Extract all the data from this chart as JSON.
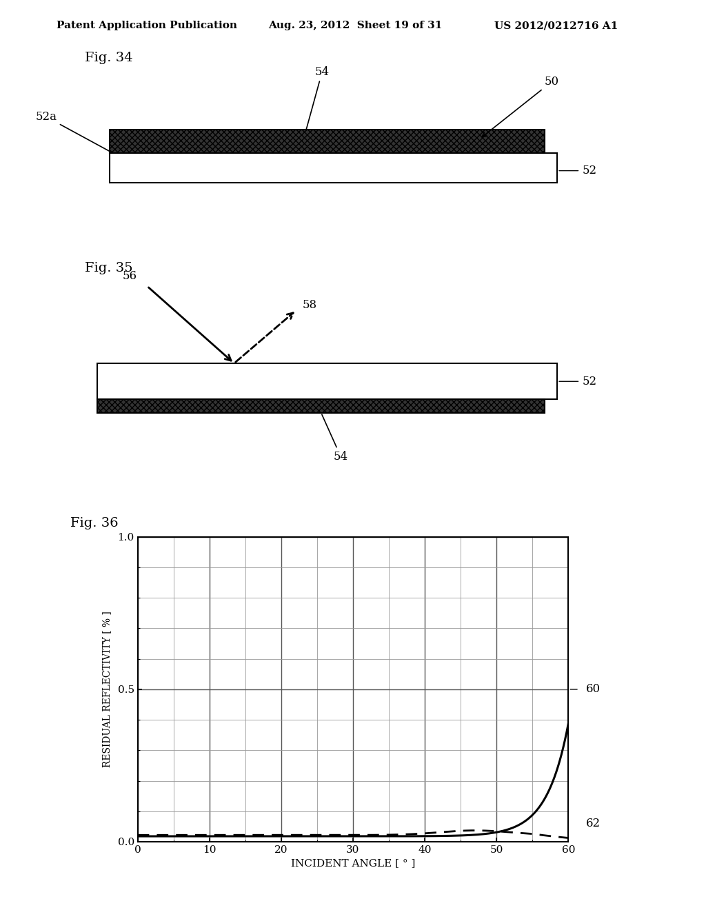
{
  "page_header_left": "Patent Application Publication",
  "page_header_center": "Aug. 23, 2012  Sheet 19 of 31",
  "page_header_right": "US 2012/0212716 A1",
  "fig34_label": "Fig. 34",
  "fig35_label": "Fig. 35",
  "fig36_label": "Fig. 36",
  "background_color": "#ffffff",
  "text_color": "#000000",
  "label_52a": "52a",
  "label_54_top": "54",
  "label_50": "50",
  "label_52_34": "52",
  "label_56": "56",
  "label_58": "58",
  "label_54_bottom": "54",
  "label_52_35": "52",
  "label_60": "60",
  "label_62": "62",
  "graph_xlabel": "INCIDENT ANGLE [ ° ]",
  "graph_ylabel": "RESIDUAL REFLECTIVITY [ % ]",
  "graph_xlim": [
    0,
    60
  ],
  "graph_ylim": [
    0,
    1
  ],
  "graph_xticks": [
    0,
    10,
    20,
    30,
    40,
    50,
    60
  ],
  "graph_yticks": [
    0,
    0.5,
    1
  ],
  "dark_color": "#333333",
  "substrate_color": "#ffffff"
}
